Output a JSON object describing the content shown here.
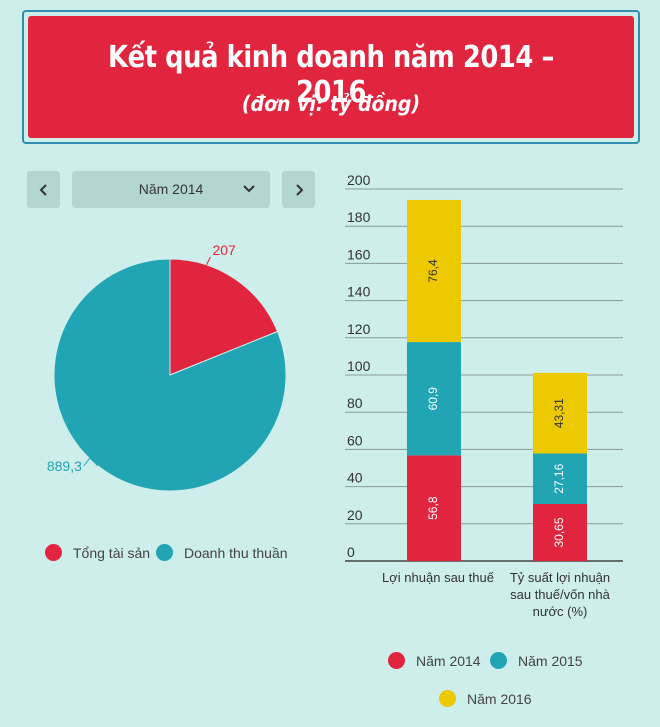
{
  "header": {
    "title": "Kết quả kinh doanh năm 2014 – 2016",
    "subtitle": "(đơn vị: tỷ đồng)"
  },
  "controls": {
    "prev_icon": "chevron-left-icon",
    "next_icon": "chevron-right-icon",
    "selected_year": "Năm 2014",
    "dropdown_icon": "chevron-down-icon"
  },
  "colors": {
    "red": "#e2253f",
    "teal": "#21a4b3",
    "yellow": "#ecc900",
    "header_bg": "#e2253f",
    "page_bg": "#cdeeea"
  },
  "chart_data": [
    {
      "type": "pie",
      "title": "Năm 2014",
      "series": [
        {
          "name": "Tổng tài sản",
          "value": 207,
          "label": "207",
          "color": "#e2253f"
        },
        {
          "name": "Doanh thu thuần",
          "value": 889.3,
          "label": "889,3",
          "color": "#21a4b3"
        }
      ],
      "legend": [
        "Tổng tài sản",
        "Doanh thu thuần"
      ]
    },
    {
      "type": "bar",
      "stacked": true,
      "categories": [
        "Lợi nhuận sau thuế",
        "Tỷ suất lợi nhuận sau thuế/vốn nhà nước (%)"
      ],
      "category_lines": [
        [
          "Lợi nhuận sau thuế"
        ],
        [
          "Tỷ suất lợi nhuận",
          "sau thuế/vốn nhà",
          "nước (%)"
        ]
      ],
      "series": [
        {
          "name": "Năm 2014",
          "values": [
            56.8,
            30.65
          ],
          "labels": [
            "56,8",
            "30,65"
          ],
          "color": "#e2253f"
        },
        {
          "name": "Năm 2015",
          "values": [
            60.9,
            27.16
          ],
          "labels": [
            "60,9",
            "27,16"
          ],
          "color": "#21a4b3"
        },
        {
          "name": "Năm 2016",
          "values": [
            76.4,
            43.31
          ],
          "labels": [
            "76,4",
            "43,31"
          ],
          "color": "#ecc900"
        }
      ],
      "ylim": [
        0,
        200
      ],
      "yticks": [
        0,
        20,
        40,
        60,
        80,
        100,
        120,
        140,
        160,
        180,
        200
      ],
      "grid": true,
      "legend": [
        "Năm 2014",
        "Năm 2015",
        "Năm 2016"
      ]
    }
  ]
}
